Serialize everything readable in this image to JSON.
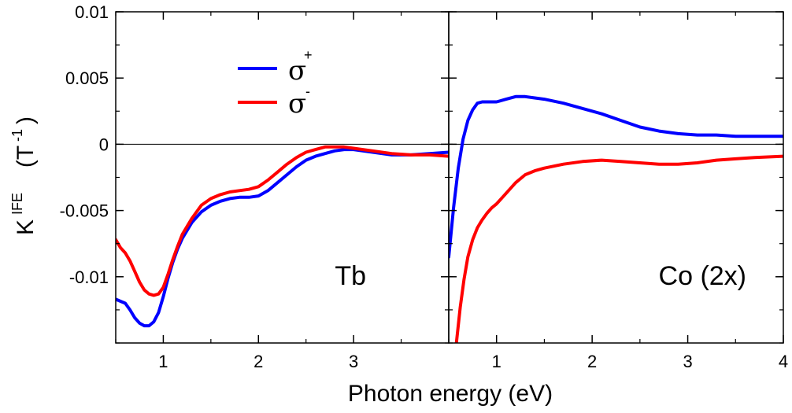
{
  "chart_data": {
    "type": "line",
    "ylabel": {
      "base": "K",
      "sup": "IFE",
      "unit_open": "(T",
      "unit_sup": "-1",
      "unit_close": ")"
    },
    "xlabel": "Photon energy (eV)",
    "ylim": [
      -0.015,
      0.01
    ],
    "yticks": [
      {
        "value": 0.01,
        "label": "0.01"
      },
      {
        "value": 0.005,
        "label": "0.005"
      },
      {
        "value": 0,
        "label": "0"
      },
      {
        "value": -0.005,
        "label": "-0.005"
      },
      {
        "value": -0.01,
        "label": "-0.01"
      }
    ],
    "legend": [
      {
        "symbol": "σ",
        "sup": "+",
        "color": "#0000ff"
      },
      {
        "symbol": "σ",
        "sup": "-",
        "color": "#ff0000"
      }
    ],
    "panels": [
      {
        "label": "Tb",
        "xlim": [
          0.5,
          4.0
        ],
        "xticks": [
          {
            "value": 1,
            "label": "1"
          },
          {
            "value": 2,
            "label": "2"
          },
          {
            "value": 3,
            "label": "3"
          }
        ],
        "series": [
          {
            "name": "sigma-plus",
            "color": "#0000ff",
            "x": [
              0.5,
              0.6,
              0.65,
              0.7,
              0.75,
              0.8,
              0.85,
              0.9,
              0.95,
              1.0,
              1.05,
              1.1,
              1.15,
              1.2,
              1.3,
              1.4,
              1.5,
              1.6,
              1.7,
              1.8,
              1.9,
              2.0,
              2.1,
              2.2,
              2.3,
              2.4,
              2.5,
              2.6,
              2.7,
              2.8,
              2.9,
              3.0,
              3.2,
              3.4,
              3.6,
              3.8,
              4.0
            ],
            "y": [
              -0.0117,
              -0.012,
              -0.0125,
              -0.0131,
              -0.0135,
              -0.0137,
              -0.0137,
              -0.0134,
              -0.0127,
              -0.0115,
              -0.0101,
              -0.0089,
              -0.0079,
              -0.0071,
              -0.0059,
              -0.0051,
              -0.0046,
              -0.0043,
              -0.0041,
              -0.004,
              -0.004,
              -0.0039,
              -0.0035,
              -0.0029,
              -0.0023,
              -0.0017,
              -0.0012,
              -0.0009,
              -0.0007,
              -0.0005,
              -0.0004,
              -0.0004,
              -0.0006,
              -0.0008,
              -0.0008,
              -0.0007,
              -0.0006
            ]
          },
          {
            "name": "sigma-minus",
            "color": "#ff0000",
            "x": [
              0.5,
              0.55,
              0.6,
              0.65,
              0.7,
              0.75,
              0.8,
              0.85,
              0.9,
              0.95,
              1.0,
              1.05,
              1.1,
              1.15,
              1.2,
              1.3,
              1.4,
              1.5,
              1.6,
              1.7,
              1.8,
              1.9,
              2.0,
              2.1,
              2.2,
              2.3,
              2.4,
              2.5,
              2.6,
              2.7,
              2.8,
              2.9,
              3.0,
              3.2,
              3.4,
              3.6,
              3.8,
              4.0
            ],
            "y": [
              -0.0072,
              -0.0078,
              -0.0082,
              -0.0088,
              -0.0096,
              -0.0104,
              -0.011,
              -0.0113,
              -0.0114,
              -0.0113,
              -0.0108,
              -0.0098,
              -0.0087,
              -0.0077,
              -0.0068,
              -0.0056,
              -0.0046,
              -0.0041,
              -0.0038,
              -0.0036,
              -0.0035,
              -0.0034,
              -0.0032,
              -0.0027,
              -0.0021,
              -0.0015,
              -0.001,
              -0.0006,
              -0.0004,
              -0.0002,
              -0.0002,
              -0.0002,
              -0.0003,
              -0.0005,
              -0.0007,
              -0.0008,
              -0.0008,
              -0.0009
            ]
          }
        ]
      },
      {
        "label": "Co (2x)",
        "xlim": [
          0.5,
          4.0
        ],
        "xticks": [
          {
            "value": 1,
            "label": "1"
          },
          {
            "value": 2,
            "label": "2"
          },
          {
            "value": 3,
            "label": "3"
          },
          {
            "value": 4,
            "label": "4"
          }
        ],
        "series": [
          {
            "name": "sigma-plus",
            "color": "#0000ff",
            "x": [
              0.5,
              0.55,
              0.6,
              0.65,
              0.7,
              0.75,
              0.8,
              0.85,
              0.9,
              1.0,
              1.1,
              1.2,
              1.3,
              1.4,
              1.5,
              1.7,
              1.9,
              2.1,
              2.3,
              2.5,
              2.7,
              2.9,
              3.1,
              3.3,
              3.5,
              3.7,
              4.0
            ],
            "y": [
              -0.0085,
              -0.0048,
              -0.0018,
              0.0004,
              0.0018,
              0.0026,
              0.0031,
              0.0032,
              0.0032,
              0.0032,
              0.0034,
              0.0036,
              0.0036,
              0.0035,
              0.0034,
              0.0031,
              0.0027,
              0.0023,
              0.0018,
              0.0013,
              0.001,
              0.0008,
              0.0007,
              0.0007,
              0.0006,
              0.0006,
              0.0006
            ]
          },
          {
            "name": "sigma-minus",
            "color": "#ff0000",
            "x": [
              0.58,
              0.62,
              0.66,
              0.7,
              0.75,
              0.8,
              0.85,
              0.9,
              0.95,
              1.0,
              1.1,
              1.2,
              1.3,
              1.4,
              1.5,
              1.7,
              1.9,
              2.1,
              2.3,
              2.5,
              2.7,
              2.9,
              3.1,
              3.3,
              3.5,
              3.7,
              4.0
            ],
            "y": [
              -0.015,
              -0.0123,
              -0.0102,
              -0.0085,
              -0.0072,
              -0.0063,
              -0.0057,
              -0.0052,
              -0.0048,
              -0.0045,
              -0.0037,
              -0.0029,
              -0.0023,
              -0.002,
              -0.0018,
              -0.0015,
              -0.0013,
              -0.0012,
              -0.0013,
              -0.0014,
              -0.0015,
              -0.0015,
              -0.0014,
              -0.0012,
              -0.0011,
              -0.001,
              -0.0009
            ]
          }
        ]
      }
    ]
  }
}
